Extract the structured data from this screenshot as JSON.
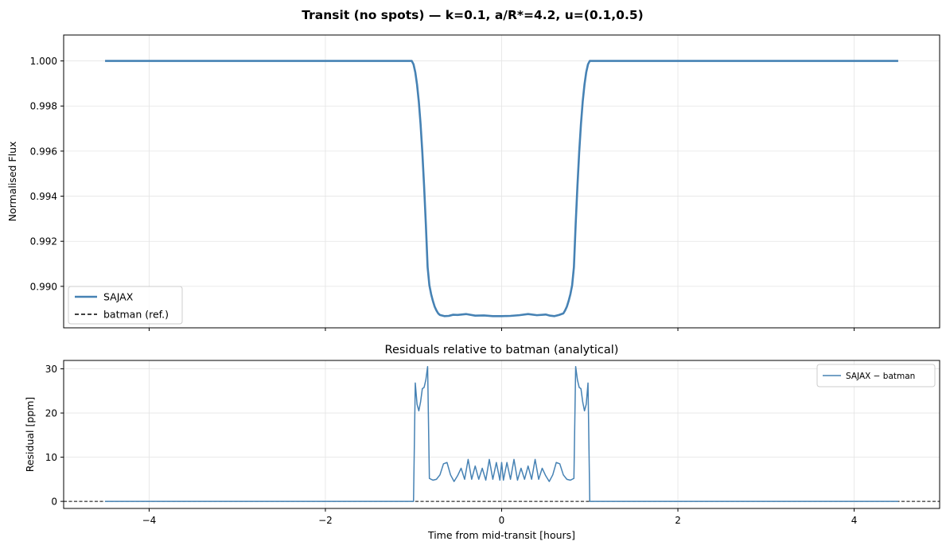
{
  "figure": {
    "title": "Transit (no spots) — k=0.1, a/R*=4.2, u=(0.1,0.5)"
  },
  "chart_data": [
    {
      "type": "line",
      "title": "",
      "xlabel": "",
      "ylabel": "Normalised Flux",
      "xlim": [
        -4.97,
        4.97
      ],
      "ylim": [
        0.98816,
        1.00115
      ],
      "xticks": [
        -4,
        -2,
        0,
        2,
        4
      ],
      "yticks": [
        0.99,
        0.992,
        0.994,
        0.996,
        0.998,
        1.0
      ],
      "ytick_labels": [
        "0.990",
        "0.992",
        "0.994",
        "0.996",
        "0.998",
        "1.000"
      ],
      "grid": true,
      "legend": "lower-left",
      "series": [
        {
          "name": "SAJAX",
          "color": "#4682b4",
          "style": "solid",
          "x": [
            -4.5,
            -1.02,
            -1.0,
            -0.98,
            -0.96,
            -0.94,
            -0.92,
            -0.9,
            -0.88,
            -0.86,
            -0.84,
            -0.82,
            -0.8,
            -0.78,
            -0.76,
            -0.74,
            -0.72,
            -0.7,
            -0.65,
            -0.6,
            -0.55,
            -0.5,
            -0.4,
            -0.3,
            -0.2,
            -0.1,
            0.0,
            0.1,
            0.2,
            0.3,
            0.4,
            0.5,
            0.55,
            0.6,
            0.65,
            0.7,
            0.72,
            0.74,
            0.76,
            0.78,
            0.8,
            0.82,
            0.84,
            0.86,
            0.88,
            0.9,
            0.92,
            0.94,
            0.96,
            0.98,
            1.0,
            1.02,
            4.5
          ],
          "y": [
            1.0,
            1.0,
            0.99985,
            0.9995,
            0.99895,
            0.9982,
            0.9972,
            0.99595,
            0.99445,
            0.99275,
            0.99085,
            0.99005,
            0.98965,
            0.98935,
            0.9891,
            0.98893,
            0.9888,
            0.98873,
            0.98868,
            0.98869,
            0.98874,
            0.98873,
            0.98877,
            0.9887,
            0.98871,
            0.98868,
            0.98868,
            0.98869,
            0.98872,
            0.98877,
            0.98872,
            0.98875,
            0.9887,
            0.98868,
            0.98873,
            0.9888,
            0.98893,
            0.9891,
            0.98935,
            0.98965,
            0.99005,
            0.99085,
            0.99275,
            0.99445,
            0.99595,
            0.9972,
            0.9982,
            0.99895,
            0.9995,
            0.99985,
            1.0,
            1.0,
            1.0
          ]
        },
        {
          "name": "batman (ref.)",
          "color": "#000000",
          "style": "dashed",
          "x": [
            -4.5,
            -1.02,
            -1.0,
            -0.98,
            -0.96,
            -0.94,
            -0.92,
            -0.9,
            -0.88,
            -0.86,
            -0.84,
            -0.82,
            -0.8,
            -0.78,
            -0.76,
            -0.74,
            -0.72,
            -0.7,
            -0.65,
            -0.6,
            -0.55,
            -0.5,
            -0.4,
            -0.3,
            -0.2,
            -0.1,
            0.0,
            0.1,
            0.2,
            0.3,
            0.4,
            0.5,
            0.55,
            0.6,
            0.65,
            0.7,
            0.72,
            0.74,
            0.76,
            0.78,
            0.8,
            0.82,
            0.84,
            0.86,
            0.88,
            0.9,
            0.92,
            0.94,
            0.96,
            0.98,
            1.0,
            1.02,
            4.5
          ],
          "y": [
            1.0,
            1.0,
            0.99985,
            0.9995,
            0.99895,
            0.9982,
            0.9972,
            0.99595,
            0.99445,
            0.99275,
            0.99085,
            0.99005,
            0.98965,
            0.98935,
            0.9891,
            0.98893,
            0.9888,
            0.98873,
            0.98868,
            0.98869,
            0.98874,
            0.98873,
            0.98877,
            0.9887,
            0.98871,
            0.98868,
            0.98868,
            0.98869,
            0.98872,
            0.98877,
            0.98872,
            0.98875,
            0.9887,
            0.98868,
            0.98873,
            0.9888,
            0.98893,
            0.9891,
            0.98935,
            0.98965,
            0.99005,
            0.99085,
            0.99275,
            0.99445,
            0.99595,
            0.9972,
            0.9982,
            0.99895,
            0.9995,
            0.99985,
            1.0,
            1.0,
            1.0
          ]
        }
      ]
    },
    {
      "type": "line",
      "title": "Residuals relative to batman (analytical)",
      "xlabel": "Time from mid-transit [hours]",
      "ylabel": "Residual [ppm]",
      "xlim": [
        -4.97,
        4.97
      ],
      "ylim": [
        -1.6,
        31.9
      ],
      "xticks": [
        -4,
        -2,
        0,
        2,
        4
      ],
      "xtick_labels": [
        "−4",
        "−2",
        "0",
        "2",
        "4"
      ],
      "yticks": [
        0,
        10,
        20,
        30
      ],
      "ytick_labels": [
        "0",
        "10",
        "20",
        "30"
      ],
      "grid": true,
      "legend": "upper-right",
      "hline": {
        "y": 0,
        "color": "#000000",
        "style": "dashed"
      },
      "series": [
        {
          "name": "SAJAX − batman",
          "color": "#4682b4",
          "style": "solid",
          "x": [
            -4.5,
            -1.0,
            -0.98,
            -0.96,
            -0.94,
            -0.92,
            -0.9,
            -0.88,
            -0.86,
            -0.84,
            -0.82,
            -0.78,
            -0.74,
            -0.7,
            -0.66,
            -0.62,
            -0.58,
            -0.54,
            -0.5,
            -0.46,
            -0.42,
            -0.38,
            -0.34,
            -0.3,
            -0.26,
            -0.22,
            -0.18,
            -0.14,
            -0.1,
            -0.06,
            -0.02,
            0.0,
            0.02,
            0.06,
            0.1,
            0.14,
            0.18,
            0.22,
            0.26,
            0.3,
            0.34,
            0.38,
            0.42,
            0.46,
            0.5,
            0.54,
            0.58,
            0.62,
            0.66,
            0.7,
            0.74,
            0.78,
            0.82,
            0.84,
            0.86,
            0.88,
            0.9,
            0.92,
            0.94,
            0.96,
            0.98,
            1.0,
            4.5
          ],
          "y": [
            0,
            0,
            26.8,
            22.0,
            20.5,
            22.5,
            25.5,
            25.8,
            27.5,
            30.5,
            5.2,
            4.8,
            5.0,
            6.0,
            8.5,
            8.8,
            6.0,
            4.5,
            5.8,
            7.5,
            5.0,
            9.5,
            5.0,
            8.0,
            5.0,
            7.5,
            4.8,
            9.5,
            5.0,
            8.8,
            4.8,
            8.8,
            4.8,
            8.8,
            5.0,
            9.5,
            4.8,
            7.5,
            5.0,
            8.0,
            5.0,
            9.5,
            5.0,
            7.5,
            5.8,
            4.5,
            6.0,
            8.8,
            8.5,
            6.0,
            5.0,
            4.8,
            5.2,
            30.5,
            27.5,
            25.8,
            25.5,
            22.5,
            20.5,
            22.0,
            26.8,
            0,
            0
          ]
        }
      ]
    }
  ]
}
